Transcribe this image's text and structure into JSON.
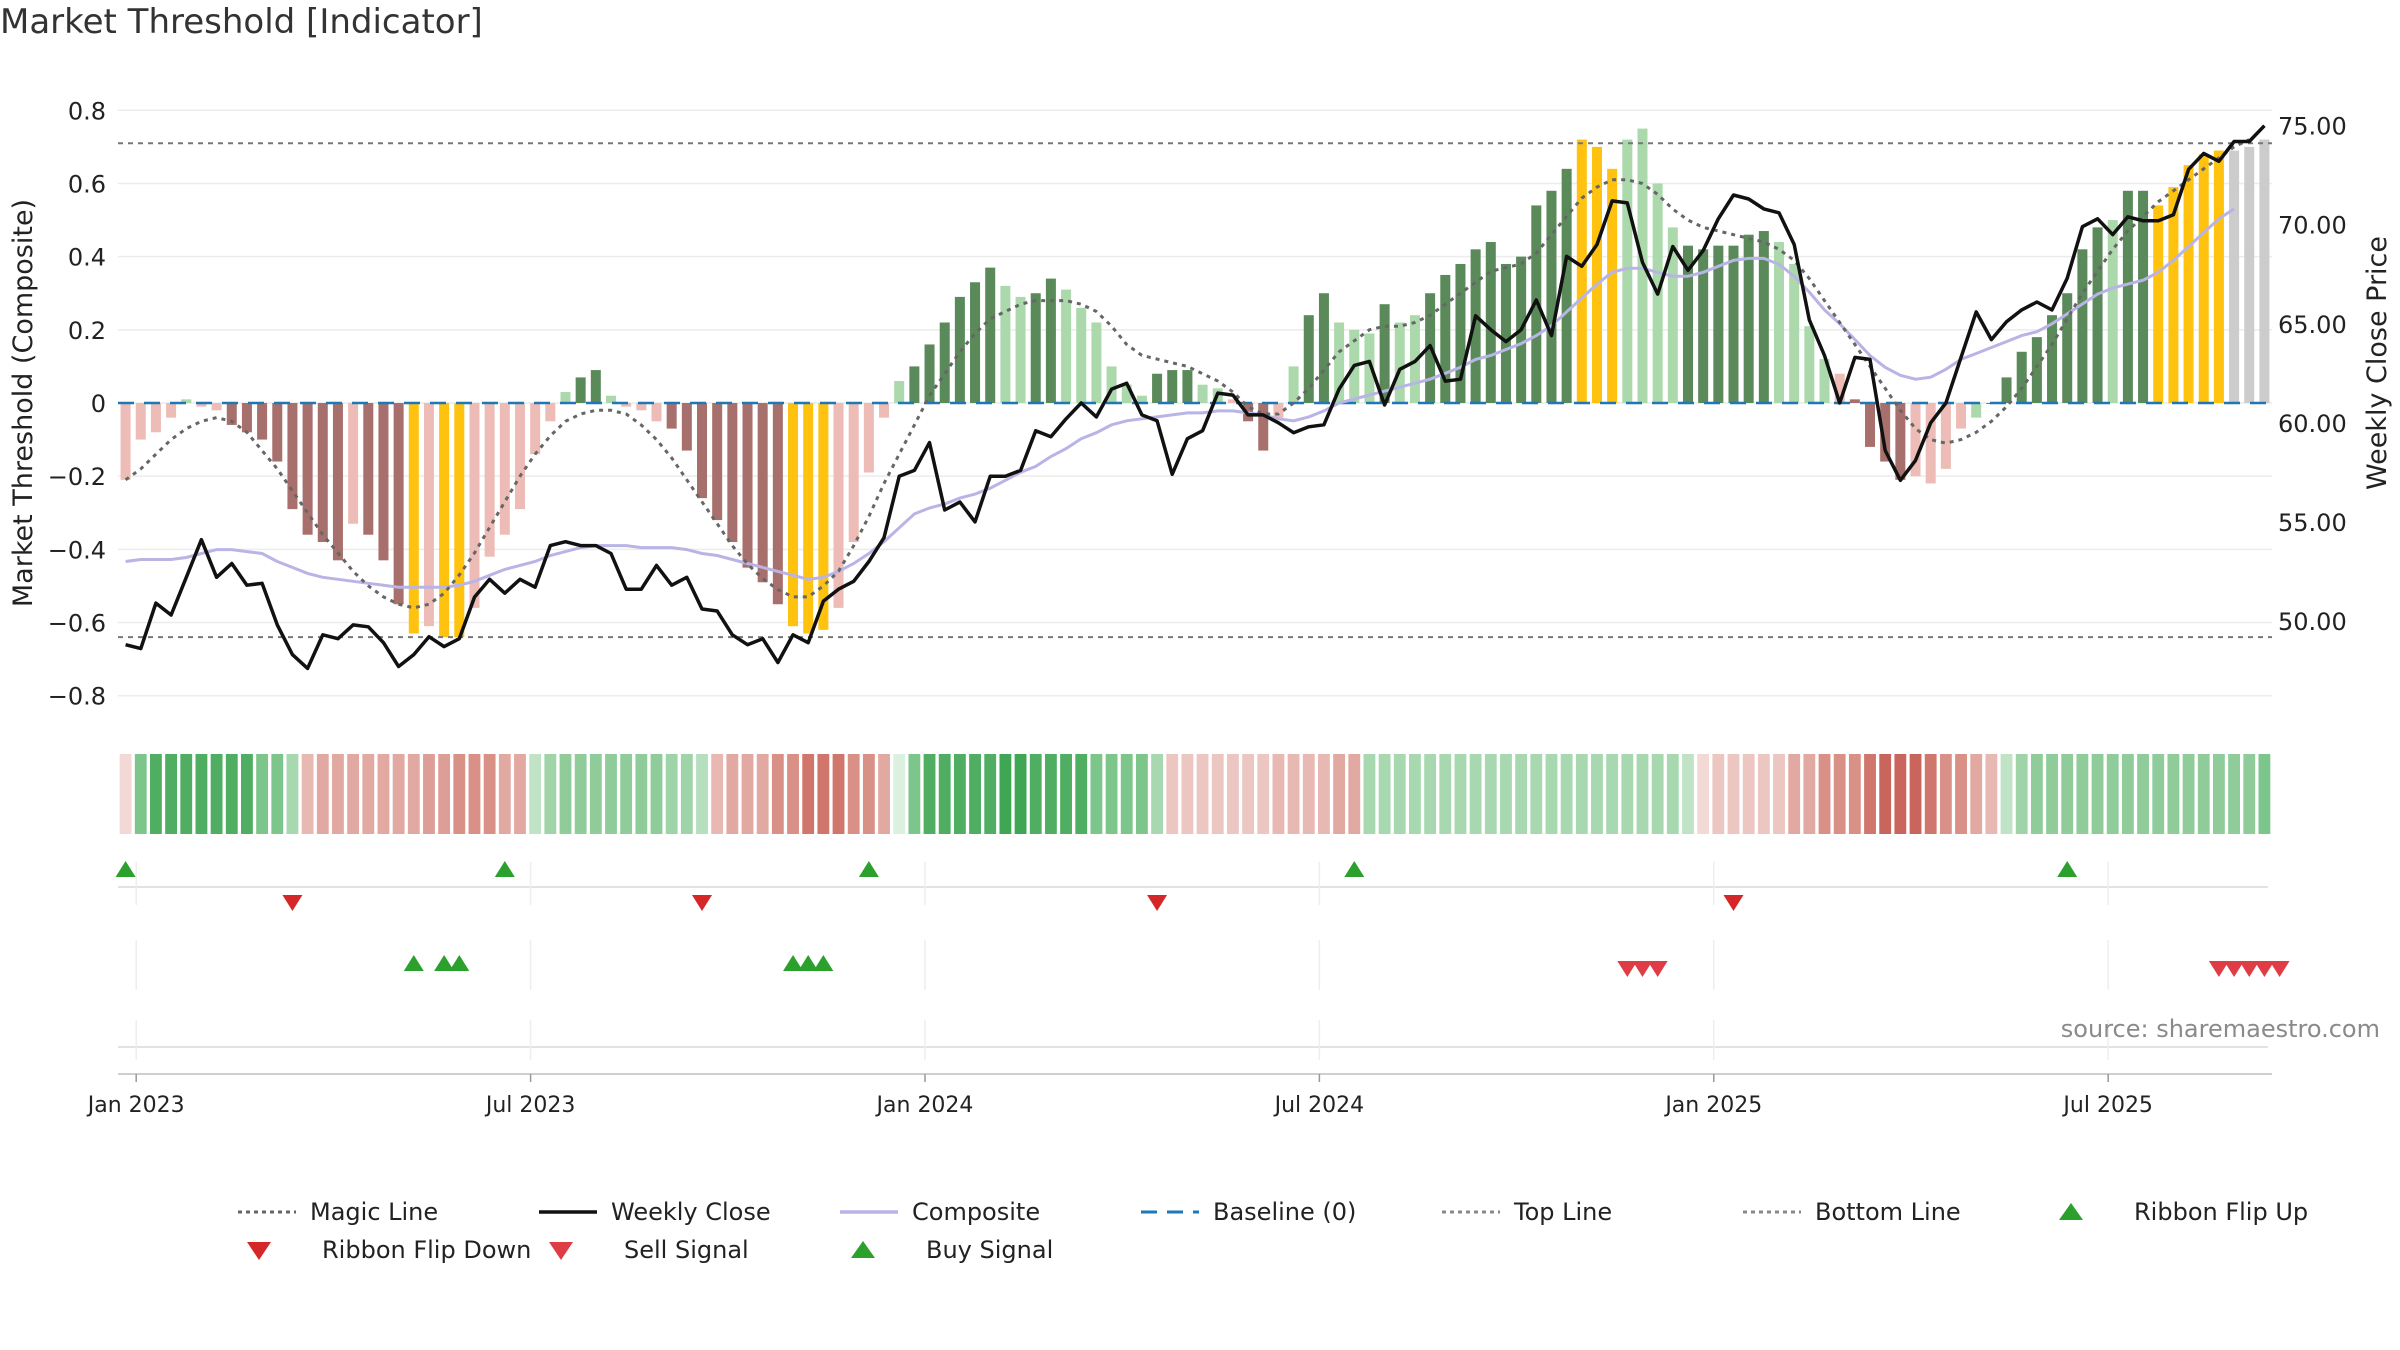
{
  "title": "Market Threshold [Indicator]",
  "source": "source: sharemaestro.com",
  "colors": {
    "magic": "#666666",
    "close": "#111111",
    "composite": "#b8b4e6",
    "baseline": "#1f77b4",
    "threshold": "#777777",
    "bar_gold": "#ffc20e",
    "bar_dark_green": "#5a8a5a",
    "bar_light_green": "#acd9ac",
    "bar_dark_red": "#a8706c",
    "bar_light_red": "#edbcb6",
    "buy": "#2ca02c",
    "flip_up": "#2ca02c",
    "sell": "#d62728",
    "flip_down": "#d62728"
  },
  "chart_data": {
    "type": "bar",
    "title": "Market Threshold [Indicator]",
    "ylabel": "Market Threshold (Composite)",
    "y2label": "Weekly Close Price",
    "ylim": [
      -0.85,
      0.85
    ],
    "y2lim": [
      45.3,
      76.7
    ],
    "yticks": [
      -0.8,
      -0.6,
      -0.4,
      -0.2,
      0,
      0.2,
      0.4,
      0.6,
      0.8
    ],
    "ytick_labels": [
      "−0.8",
      "−0.6",
      "−0.4",
      "−0.2",
      "0",
      "0.2",
      "0.4",
      "0.6",
      "0.8"
    ],
    "y2ticks": [
      50,
      55,
      60,
      65,
      70,
      75
    ],
    "y2tick_labels": [
      "50.00",
      "55.00",
      "60.00",
      "65.00",
      "70.00",
      "75.00"
    ],
    "xtick_labels": [
      "Jan 2023",
      "Jul 2023",
      "Jan 2024",
      "Jul 2024",
      "Jan 2025",
      "Jul 2025"
    ],
    "xtick_weeks": [
      1,
      27,
      53,
      79,
      105,
      131
    ],
    "top_line": 0.71,
    "bottom_line": -0.64,
    "baseline": 0,
    "composite_bars": [
      -0.21,
      -0.1,
      -0.08,
      -0.04,
      0.01,
      -0.01,
      -0.02,
      -0.06,
      -0.08,
      -0.1,
      -0.16,
      -0.29,
      -0.36,
      -0.38,
      -0.43,
      -0.33,
      -0.36,
      -0.43,
      -0.55,
      -0.63,
      -0.61,
      -0.64,
      -0.64,
      -0.56,
      -0.42,
      -0.36,
      -0.29,
      -0.14,
      -0.05,
      0.03,
      0.07,
      0.09,
      0.02,
      -0.01,
      -0.02,
      -0.05,
      -0.07,
      -0.13,
      -0.26,
      -0.32,
      -0.38,
      -0.45,
      -0.49,
      -0.55,
      -0.61,
      -0.63,
      -0.62,
      -0.56,
      -0.38,
      -0.19,
      -0.04,
      0.06,
      0.1,
      0.16,
      0.22,
      0.29,
      0.33,
      0.37,
      0.32,
      0.29,
      0.3,
      0.34,
      0.31,
      0.26,
      0.22,
      0.1,
      0.05,
      0.02,
      0.08,
      0.09,
      0.09,
      0.05,
      0.04,
      0.01,
      -0.05,
      -0.13,
      -0.04,
      0.1,
      0.24,
      0.3,
      0.22,
      0.2,
      0.19,
      0.27,
      0.22,
      0.24,
      0.3,
      0.35,
      0.38,
      0.42,
      0.44,
      0.38,
      0.4,
      0.54,
      0.58,
      0.64,
      0.72,
      0.7,
      0.64,
      0.72,
      0.75,
      0.6,
      0.48,
      0.43,
      0.42,
      0.43,
      0.43,
      0.46,
      0.47,
      0.44,
      0.38,
      0.21,
      0.12,
      0.08,
      0.01,
      -0.12,
      -0.16,
      -0.21,
      -0.2,
      -0.22,
      -0.18,
      -0.07,
      -0.04,
      0.0,
      0.07,
      0.14,
      0.18,
      0.24,
      0.3,
      0.42,
      0.48,
      0.5,
      0.58,
      0.58,
      0.54,
      0.59,
      0.65,
      0.68,
      0.69,
      0.69,
      0.7,
      0.72
    ],
    "bar_colors": [
      "lr",
      "lr",
      "lr",
      "lr",
      "lg",
      "lr",
      "lr",
      "dr",
      "dr",
      "dr",
      "dr",
      "dr",
      "dr",
      "dr",
      "dr",
      "lr",
      "dr",
      "dr",
      "dr",
      "gold",
      "lr",
      "gold",
      "gold",
      "lr",
      "lr",
      "lr",
      "lr",
      "lr",
      "lr",
      "lg",
      "dg",
      "dg",
      "lg",
      "lr",
      "lr",
      "lr",
      "dr",
      "dr",
      "dr",
      "dr",
      "dr",
      "dr",
      "dr",
      "dr",
      "gold",
      "gold",
      "gold",
      "lr",
      "lr",
      "lr",
      "lr",
      "lg",
      "dg",
      "dg",
      "dg",
      "dg",
      "dg",
      "dg",
      "lg",
      "lg",
      "dg",
      "dg",
      "lg",
      "lg",
      "lg",
      "lg",
      "lg",
      "lg",
      "dg",
      "dg",
      "dg",
      "lg",
      "lg",
      "lr",
      "dr",
      "dr",
      "lr",
      "lg",
      "dg",
      "dg",
      "lg",
      "lg",
      "lg",
      "dg",
      "lg",
      "lg",
      "dg",
      "dg",
      "dg",
      "dg",
      "dg",
      "dg",
      "dg",
      "dg",
      "dg",
      "dg",
      "gold",
      "gold",
      "gold",
      "lg",
      "lg",
      "lg",
      "lg",
      "dg",
      "dg",
      "dg",
      "dg",
      "dg",
      "dg",
      "lg",
      "lg",
      "lg",
      "lg",
      "lr",
      "dr",
      "dr",
      "dr",
      "dr",
      "lr",
      "lr",
      "lr",
      "lr",
      "lg",
      "dg",
      "dg",
      "dg",
      "dg",
      "dg",
      "dg",
      "dg",
      "dg",
      "lg",
      "dg",
      "dg",
      "gold",
      "gold",
      "gold",
      "gold",
      "gold"
    ],
    "magic_line": [
      -0.21,
      -0.18,
      -0.14,
      -0.1,
      -0.07,
      -0.05,
      -0.04,
      -0.05,
      -0.08,
      -0.13,
      -0.18,
      -0.24,
      -0.3,
      -0.36,
      -0.41,
      -0.46,
      -0.5,
      -0.53,
      -0.55,
      -0.56,
      -0.55,
      -0.52,
      -0.47,
      -0.41,
      -0.34,
      -0.27,
      -0.2,
      -0.14,
      -0.09,
      -0.05,
      -0.03,
      -0.02,
      -0.02,
      -0.03,
      -0.06,
      -0.1,
      -0.15,
      -0.21,
      -0.27,
      -0.33,
      -0.39,
      -0.44,
      -0.48,
      -0.51,
      -0.53,
      -0.53,
      -0.5,
      -0.46,
      -0.39,
      -0.31,
      -0.22,
      -0.14,
      -0.06,
      0.02,
      0.08,
      0.14,
      0.19,
      0.23,
      0.25,
      0.27,
      0.28,
      0.28,
      0.28,
      0.27,
      0.25,
      0.21,
      0.16,
      0.13,
      0.12,
      0.11,
      0.1,
      0.08,
      0.06,
      0.03,
      -0.01,
      -0.03,
      -0.03,
      0.0,
      0.04,
      0.09,
      0.14,
      0.17,
      0.2,
      0.21,
      0.21,
      0.22,
      0.24,
      0.27,
      0.3,
      0.33,
      0.36,
      0.37,
      0.38,
      0.41,
      0.46,
      0.51,
      0.56,
      0.59,
      0.61,
      0.61,
      0.6,
      0.57,
      0.53,
      0.5,
      0.48,
      0.47,
      0.46,
      0.45,
      0.44,
      0.42,
      0.39,
      0.34,
      0.28,
      0.22,
      0.16,
      0.1,
      0.04,
      -0.02,
      -0.07,
      -0.1,
      -0.11,
      -0.1,
      -0.08,
      -0.05,
      -0.01,
      0.04,
      0.1,
      0.16,
      0.23,
      0.3,
      0.36,
      0.42,
      0.47,
      0.51,
      0.55,
      0.58,
      0.61,
      0.64,
      0.67,
      0.7,
      0.72
    ],
    "weekly_close": [
      48.8,
      48.6,
      50.9,
      50.3,
      52.2,
      54.1,
      52.2,
      52.9,
      51.8,
      51.9,
      49.8,
      48.3,
      47.6,
      49.3,
      49.1,
      49.8,
      49.7,
      48.9,
      47.7,
      48.3,
      49.2,
      48.7,
      49.1,
      51.2,
      52.1,
      51.4,
      52.1,
      51.7,
      53.8,
      54.0,
      53.8,
      53.8,
      53.4,
      51.6,
      51.6,
      52.8,
      51.8,
      52.2,
      50.6,
      50.5,
      49.3,
      48.8,
      49.1,
      47.9,
      49.3,
      48.9,
      51.0,
      51.6,
      52.0,
      53.0,
      54.2,
      57.3,
      57.6,
      59.0,
      55.6,
      56.0,
      55.0,
      57.3,
      57.3,
      57.6,
      59.6,
      59.3,
      60.2,
      61.0,
      60.3,
      61.7,
      62.0,
      60.4,
      60.1,
      57.4,
      59.2,
      59.6,
      61.5,
      61.4,
      60.4,
      60.4,
      60.0,
      59.5,
      59.8,
      59.9,
      61.7,
      62.9,
      63.1,
      60.9,
      62.7,
      63.1,
      63.9,
      62.1,
      62.2,
      65.4,
      64.7,
      64.1,
      64.7,
      66.2,
      64.4,
      68.4,
      67.9,
      69.0,
      71.2,
      71.1,
      68.1,
      66.5,
      68.9,
      67.7,
      68.7,
      70.3,
      71.5,
      71.3,
      70.8,
      70.6,
      69.0,
      65.2,
      63.4,
      61.0,
      63.3,
      63.2,
      58.6,
      57.1,
      58.1,
      60.0,
      61.0,
      63.3,
      65.6,
      64.2,
      65.1,
      65.7,
      66.1,
      65.7,
      67.3,
      69.9,
      70.3,
      69.5,
      70.4,
      70.2,
      70.2,
      70.5,
      72.8,
      73.6,
      73.2,
      74.2,
      74.2,
      75.0
    ],
    "composite_line": [
      53.0,
      53.1,
      53.1,
      53.1,
      53.2,
      53.4,
      53.6,
      53.6,
      53.5,
      53.4,
      53.0,
      52.7,
      52.4,
      52.2,
      52.1,
      52.0,
      51.9,
      51.8,
      51.7,
      51.7,
      51.7,
      51.7,
      51.8,
      52.0,
      52.3,
      52.6,
      52.8,
      53.0,
      53.3,
      53.5,
      53.7,
      53.8,
      53.8,
      53.8,
      53.7,
      53.7,
      53.7,
      53.6,
      53.4,
      53.3,
      53.1,
      52.9,
      52.7,
      52.5,
      52.3,
      52.1,
      52.2,
      52.5,
      52.9,
      53.4,
      54.0,
      54.7,
      55.4,
      55.7,
      55.9,
      56.2,
      56.4,
      56.7,
      57.1,
      57.5,
      57.8,
      58.3,
      58.7,
      59.2,
      59.5,
      59.9,
      60.1,
      60.2,
      60.3,
      60.4,
      60.5,
      60.5,
      60.6,
      60.6,
      60.5,
      60.4,
      60.2,
      60.1,
      60.3,
      60.6,
      61.0,
      61.2,
      61.4,
      61.6,
      61.8,
      62.0,
      62.2,
      62.5,
      62.8,
      63.2,
      63.4,
      63.7,
      64.0,
      64.4,
      64.9,
      65.6,
      66.3,
      67.0,
      67.6,
      67.8,
      67.8,
      67.6,
      67.4,
      67.4,
      67.6,
      67.9,
      68.2,
      68.3,
      68.3,
      68.0,
      67.4,
      66.6,
      65.7,
      65.0,
      64.2,
      63.4,
      62.8,
      62.4,
      62.2,
      62.3,
      62.7,
      63.2,
      63.5,
      63.8,
      64.1,
      64.4,
      64.6,
      65.0,
      65.5,
      66.0,
      66.5,
      66.8,
      67.0,
      67.2,
      67.6,
      68.2,
      68.9,
      69.6,
      70.3,
      70.8
    ],
    "ribbon_colors": [
      "#f2d9d6",
      "#7dc68b",
      "#4fae62",
      "#4fae62",
      "#4fae62",
      "#4fae62",
      "#4fae62",
      "#4fae62",
      "#4fae62",
      "#7dc68b",
      "#7dc68b",
      "#a8d8b0",
      "#e8b8b2",
      "#e2a9a2",
      "#e2a9a2",
      "#e2a9a2",
      "#e2a9a2",
      "#e2a9a2",
      "#e2a9a2",
      "#e2a9a2",
      "#dd9e97",
      "#dd9e97",
      "#d99087",
      "#d99087",
      "#d99087",
      "#e2a9a2",
      "#e2a9a2",
      "#bfe3c4",
      "#9fd4a8",
      "#8fcc9a",
      "#8fcc9a",
      "#8fcc9a",
      "#8fcc9a",
      "#8fcc9a",
      "#8fcc9a",
      "#8fcc9a",
      "#9fd4a8",
      "#9fd4a8",
      "#b5dfbd",
      "#e8b8b2",
      "#e2a9a2",
      "#e2a9a2",
      "#e2a9a2",
      "#d99087",
      "#d99087",
      "#d0766c",
      "#d0766c",
      "#d0766c",
      "#d99087",
      "#d99087",
      "#e2a9a2",
      "#dbf0df",
      "#7dc68b",
      "#4fae62",
      "#4fae62",
      "#4fae62",
      "#4fae62",
      "#4fae62",
      "#3fa654",
      "#3fa654",
      "#4fae62",
      "#4fae62",
      "#4fae62",
      "#4fae62",
      "#7dc68b",
      "#7dc68b",
      "#7dc68b",
      "#7dc68b",
      "#a8d8b0",
      "#ecc6c1",
      "#ecc6c1",
      "#ecc6c1",
      "#ecc6c1",
      "#ecc6c1",
      "#ecc6c1",
      "#ecc6c1",
      "#e8b8b2",
      "#e8b8b2",
      "#e8b8b2",
      "#e8b8b2",
      "#e2a9a2",
      "#e2a9a2",
      "#a8d8b0",
      "#a8d8b0",
      "#a8d8b0",
      "#a8d8b0",
      "#a8d8b0",
      "#a8d8b0",
      "#a8d8b0",
      "#a8d8b0",
      "#a8d8b0",
      "#a8d8b0",
      "#a8d8b0",
      "#a8d8b0",
      "#a8d8b0",
      "#a8d8b0",
      "#a8d8b0",
      "#a8d8b0",
      "#a8d8b0",
      "#a8d8b0",
      "#a8d8b0",
      "#a8d8b0",
      "#a8d8b0",
      "#bfe3c4",
      "#f2d9d6",
      "#ecc6c1",
      "#ecc6c1",
      "#ecc6c1",
      "#ecc6c1",
      "#ecc6c1",
      "#e2a9a2",
      "#e2a9a2",
      "#d99087",
      "#d99087",
      "#d99087",
      "#d0766c",
      "#c9655c",
      "#c9655c",
      "#c9655c",
      "#d0766c",
      "#d99087",
      "#d99087",
      "#e2a9a2",
      "#e8b8b2",
      "#bfe3c4",
      "#9fd4a8",
      "#8fcc9a",
      "#8fcc9a",
      "#8fcc9a",
      "#8fcc9a",
      "#8fcc9a",
      "#8fcc9a",
      "#8fcc9a",
      "#8fcc9a",
      "#8fcc9a",
      "#8fcc9a",
      "#8fcc9a",
      "#8fcc9a",
      "#8fcc9a",
      "#8fcc9a",
      "#8fcc9a",
      "#7dc68b"
    ],
    "ribbon_flip_up_weeks": [
      0,
      25,
      49,
      81,
      128
    ],
    "ribbon_flip_down_weeks": [
      11,
      38,
      68,
      106
    ],
    "buy_signal_weeks": [
      19,
      21,
      22,
      44,
      45,
      46
    ],
    "sell_signal_weeks": [
      99,
      100,
      101,
      138,
      139,
      140,
      141,
      142
    ]
  },
  "legend": [
    {
      "label": "Magic Line",
      "symbol": "dotted-line",
      "color": "#666666"
    },
    {
      "label": "Weekly Close",
      "symbol": "solid-line",
      "color": "#111111"
    },
    {
      "label": "Composite",
      "symbol": "solid-line",
      "color": "#b8b4e6"
    },
    {
      "label": "Baseline (0)",
      "symbol": "dashed-line",
      "color": "#1f77b4"
    },
    {
      "label": "Top Line",
      "symbol": "dotted-line",
      "color": "#888888"
    },
    {
      "label": "Bottom Line",
      "symbol": "dotted-line",
      "color": "#888888"
    },
    {
      "label": "Ribbon Flip Up",
      "symbol": "triangle-up",
      "color": "#2ca02c"
    },
    {
      "label": "Ribbon Flip Down",
      "symbol": "triangle-down",
      "color": "#d62728"
    },
    {
      "label": "Sell Signal",
      "symbol": "triangle-down",
      "color": "#e03c45"
    },
    {
      "label": "Buy Signal",
      "symbol": "triangle-up",
      "color": "#2ca02c"
    }
  ]
}
